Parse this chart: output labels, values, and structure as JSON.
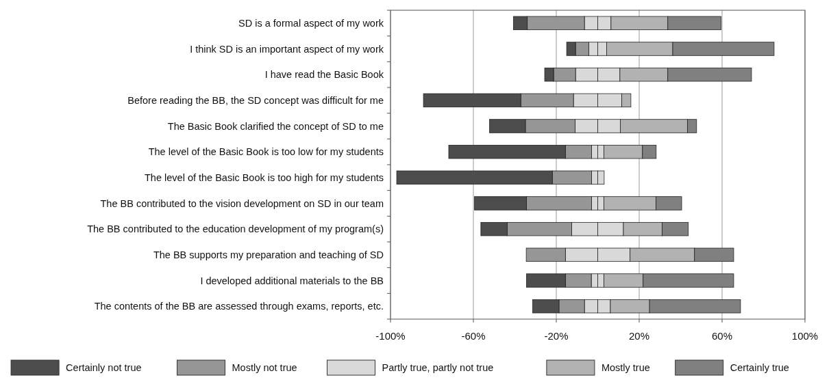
{
  "chart_data": {
    "type": "bar",
    "orientation": "horizontal",
    "stacked": true,
    "categories": [
      "SD is a formal aspect of my work",
      "I think SD is an important aspect of my work",
      "I have read the Basic Book",
      "Before reading the BB, the SD concept was difficult for me",
      "The Basic Book clarified the concept of SD to me",
      "The level of the Basic Book is too low for my students",
      "The level of the Basic Book is too high for my students",
      "The BB contributed to the vision development on SD in our team",
      "The BB contributed to the education development of my program(s)",
      "The BB supports my preparation and teaching of SD",
      "I developed additional materials to the BB",
      "The contents of the BB are assessed through exams, reports, etc."
    ],
    "series": [
      {
        "name": "Partly true, partly not true",
        "color": "#d9d9d9",
        "values": [
          -6.4,
          -4.3,
          -10.7,
          -11.7,
          -10.9,
          -3,
          -3,
          -3,
          -12.6,
          -15.6,
          -3.1,
          -6.4
        ]
      },
      {
        "color": "#d9d9d9",
        "values": [
          6.4,
          4.3,
          10.7,
          11.6,
          10.9,
          3,
          3.1,
          3,
          12.4,
          15.6,
          3,
          6.1
        ]
      },
      {
        "name": "Mostly not true",
        "color": "#969696",
        "values": [
          -27.6,
          -6.4,
          -10.6,
          -25.4,
          -24,
          -12.6,
          -18.9,
          -31.4,
          -31.1,
          -18.9,
          -12.4,
          -12.3
        ]
      },
      {
        "name": "Mostly true",
        "color": "#b2b2b2",
        "values": [
          27.4,
          31.9,
          23.1,
          4.4,
          32.4,
          18.6,
          0,
          25.1,
          18.7,
          31.1,
          18.9,
          18.9
        ]
      },
      {
        "name": "Certainly not true",
        "color": "#4d4d4d",
        "values": [
          -6.7,
          -4.3,
          -4.3,
          -47,
          -17.3,
          -56.3,
          -75.1,
          -25.1,
          -12.7,
          0,
          -18.9,
          -12.7
        ]
      },
      {
        "name": "Certainly true",
        "color": "#808080",
        "values": [
          25.7,
          48.9,
          40.4,
          0,
          4.4,
          6.6,
          0,
          12.4,
          12.6,
          18.9,
          43.7,
          43.9
        ]
      }
    ],
    "xlim": [
      -100,
      100
    ],
    "xticks": [
      {
        "value": -100,
        "label": "-100%"
      },
      {
        "value": -60,
        "label": "-60%"
      },
      {
        "value": -20,
        "label": "-20%"
      },
      {
        "value": 20,
        "label": "20%"
      },
      {
        "value": 60,
        "label": "60%"
      },
      {
        "value": 100,
        "label": "100%"
      }
    ],
    "grid": "x",
    "legend": "bottom"
  }
}
